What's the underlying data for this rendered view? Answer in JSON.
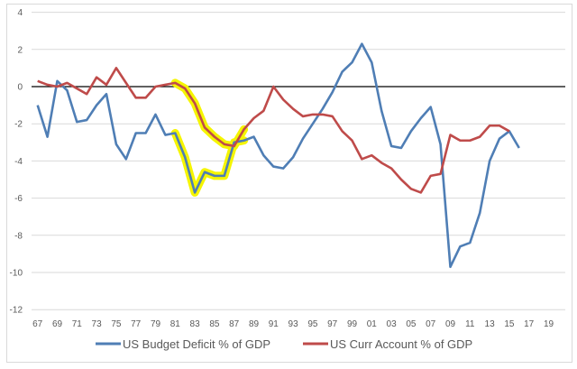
{
  "chart_data": {
    "type": "line",
    "title": "",
    "xlabel": "",
    "ylabel": "",
    "ylim": [
      -12,
      4
    ],
    "yticks": [
      "4",
      "2",
      "0",
      "-2",
      "-4",
      "-6",
      "-8",
      "-10",
      "-12"
    ],
    "xlim": [
      1967,
      2019
    ],
    "xtick_labels": [
      "67",
      "69",
      "71",
      "73",
      "75",
      "77",
      "79",
      "81",
      "83",
      "85",
      "87",
      "89",
      "91",
      "93",
      "95",
      "97",
      "99",
      "01",
      "03",
      "05",
      "07",
      "09",
      "11",
      "13",
      "15",
      "17",
      "19"
    ],
    "grid": true,
    "legend_position": "bottom",
    "zero_line_color": "#000000",
    "highlight": {
      "color": "#f5f500",
      "x_range": [
        1981,
        1988
      ]
    },
    "series": [
      {
        "name": "US Budget Deficit % of GDP",
        "color": "#4f7eb5",
        "x": [
          1967,
          1968,
          1969,
          1970,
          1971,
          1972,
          1973,
          1974,
          1975,
          1976,
          1977,
          1978,
          1979,
          1980,
          1981,
          1982,
          1983,
          1984,
          1985,
          1986,
          1987,
          1988,
          1989,
          1990,
          1991,
          1992,
          1993,
          1994,
          1995,
          1996,
          1997,
          1998,
          1999,
          2000,
          2001,
          2002,
          2003,
          2004,
          2005,
          2006,
          2007,
          2008,
          2009,
          2010,
          2011,
          2012,
          2013,
          2014,
          2015,
          2016
        ],
        "values": [
          -1.0,
          -2.7,
          0.3,
          -0.2,
          -1.9,
          -1.8,
          -1.0,
          -0.4,
          -3.1,
          -3.9,
          -2.5,
          -2.5,
          -1.5,
          -2.6,
          -2.5,
          -3.8,
          -5.7,
          -4.6,
          -4.8,
          -4.8,
          -3.0,
          -2.9,
          -2.7,
          -3.7,
          -4.3,
          -4.4,
          -3.8,
          -2.8,
          -2.0,
          -1.2,
          -0.3,
          0.8,
          1.3,
          2.3,
          1.3,
          -1.3,
          -3.2,
          -3.3,
          -2.4,
          -1.7,
          -1.1,
          -3.1,
          -9.7,
          -8.6,
          -8.4,
          -6.8,
          -4.0,
          -2.8,
          -2.4,
          -3.3
        ]
      },
      {
        "name": "US Curr Account % of GDP",
        "color": "#bf4b4a",
        "x": [
          1967,
          1968,
          1969,
          1970,
          1971,
          1972,
          1973,
          1974,
          1975,
          1976,
          1977,
          1978,
          1979,
          1980,
          1981,
          1982,
          1983,
          1984,
          1985,
          1986,
          1987,
          1988,
          1989,
          1990,
          1991,
          1992,
          1993,
          1994,
          1995,
          1996,
          1997,
          1998,
          1999,
          2000,
          2001,
          2002,
          2003,
          2004,
          2005,
          2006,
          2007,
          2008,
          2009,
          2010,
          2011,
          2012,
          2013,
          2014,
          2015
        ],
        "values": [
          0.3,
          0.1,
          0.0,
          0.2,
          -0.1,
          -0.4,
          0.5,
          0.1,
          1.0,
          0.2,
          -0.6,
          -0.6,
          0.0,
          0.1,
          0.2,
          -0.1,
          -0.9,
          -2.2,
          -2.7,
          -3.1,
          -3.2,
          -2.3,
          -1.7,
          -1.3,
          0.0,
          -0.7,
          -1.2,
          -1.6,
          -1.5,
          -1.5,
          -1.6,
          -2.4,
          -2.9,
          -3.9,
          -3.7,
          -4.1,
          -4.4,
          -5.0,
          -5.5,
          -5.7,
          -4.8,
          -4.7,
          -2.6,
          -2.9,
          -2.9,
          -2.7,
          -2.1,
          -2.1,
          -2.4
        ]
      }
    ]
  }
}
